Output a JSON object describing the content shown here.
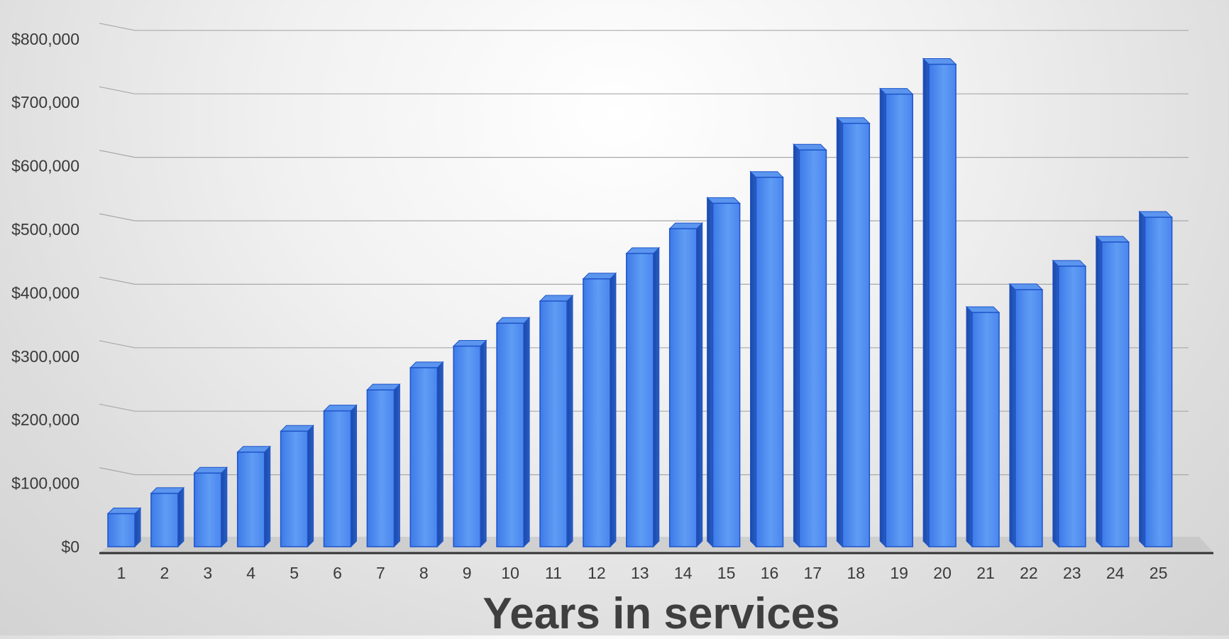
{
  "chart_data": {
    "type": "bar",
    "style": "3d-column",
    "title": "",
    "xlabel": "Years in services",
    "ylabel": "",
    "ylim": [
      0,
      800000
    ],
    "yticks": [
      0,
      100000,
      200000,
      300000,
      400000,
      500000,
      600000,
      700000,
      800000
    ],
    "ytick_labels": [
      "$0",
      "$100,000",
      "$200,000",
      "$300,000",
      "$400,000",
      "$500,000",
      "$600,000",
      "$700,000",
      "$800,000"
    ],
    "grid": true,
    "legend": "none",
    "categories": [
      "1",
      "2",
      "3",
      "4",
      "5",
      "6",
      "7",
      "8",
      "9",
      "10",
      "11",
      "12",
      "13",
      "14",
      "15",
      "16",
      "17",
      "18",
      "19",
      "20",
      "21",
      "22",
      "23",
      "24",
      "25"
    ],
    "values": [
      52000,
      84000,
      116000,
      149000,
      182000,
      214000,
      247000,
      282000,
      316000,
      352000,
      387000,
      422000,
      462000,
      501000,
      541000,
      582000,
      625000,
      667000,
      713000,
      760000,
      369000,
      405000,
      442000,
      480000,
      519000
    ],
    "colors": {
      "bar_front": "#4f8cf0",
      "bar_front_light": "#6aa4f7",
      "bar_side": "#1f4fb3",
      "bar_top": "#5b95ee",
      "bar_edge": "#1e54c9",
      "axis": "#333333",
      "gridline": "#a9a9a9",
      "tick_text": "#3a3a3a",
      "xlabel_text": "#3f3f3f"
    }
  }
}
